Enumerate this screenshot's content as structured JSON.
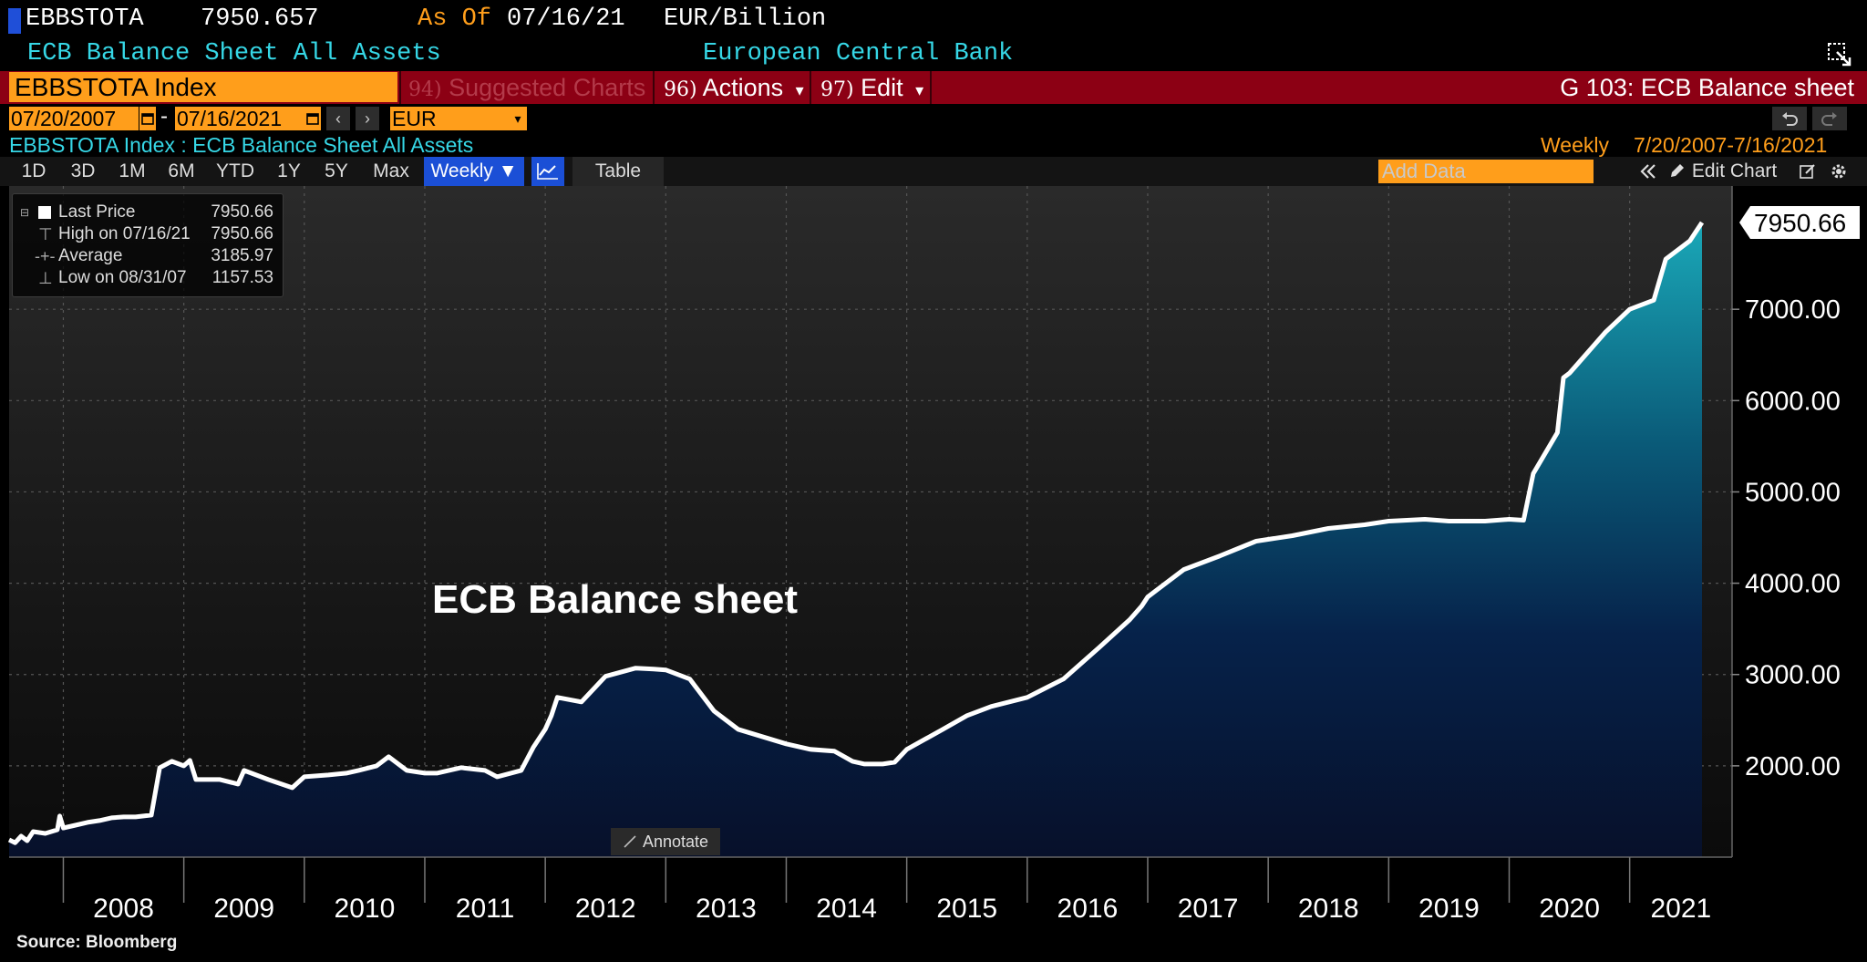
{
  "header": {
    "ticker": "EBBSTOTA",
    "last_value": "7950.657",
    "as_of_label": "As Of",
    "as_of_date": "07/16/21",
    "units": "EUR/Billion",
    "description": "ECB Balance Sheet All Assets",
    "source_name": "European Central Bank"
  },
  "toolbar": {
    "index_field": "EBBSTOTA Index",
    "suggested_num": "94)",
    "suggested_label": "Suggested Charts",
    "actions_num": "96)",
    "actions_label": "Actions",
    "edit_num": "97)",
    "edit_label": "Edit",
    "page_title": "G 103: ECB Balance sheet",
    "dropdown_arrow": "▾"
  },
  "range": {
    "start_date": "07/20/2007",
    "end_date": "07/16/2021",
    "separator": "-",
    "currency": "EUR"
  },
  "subheader": {
    "security": "EBBSTOTA Index : ECB Balance Sheet All Assets",
    "frequency": "Weekly",
    "period": "7/20/2007-7/16/2021"
  },
  "timeframes": [
    "1D",
    "3D",
    "1M",
    "6M",
    "YTD",
    "1Y",
    "5Y",
    "Max"
  ],
  "frequency_button": "Weekly ▼",
  "table_button": "Table",
  "add_data_placeholder": "Add Data",
  "edit_chart_label": "Edit Chart",
  "legend": [
    {
      "label": "Last Price",
      "value": "7950.66"
    },
    {
      "label": "High on 07/16/21",
      "value": "7950.66"
    },
    {
      "label": "Average",
      "value": "3185.97"
    },
    {
      "label": "Low on 08/31/07",
      "value": "1157.53"
    }
  ],
  "annotate_label": "Annotate",
  "source_text": "Source: Bloomberg",
  "colors": {
    "accent_orange": "#ff9e1b",
    "toolbar_red": "#8c0014",
    "cyan_text": "#36d7e6",
    "button_blue": "#1b4fd6"
  },
  "chart_data": {
    "type": "area",
    "title": "ECB Balance sheet",
    "last_label": "7950.66",
    "xlabel": "",
    "ylabel": "",
    "xlim": [
      2007.55,
      2021.85
    ],
    "ylim": [
      1000,
      8350
    ],
    "y_ticks": [
      2000,
      3000,
      4000,
      5000,
      6000,
      7000
    ],
    "y_tick_labels": [
      "2000.00",
      "3000.00",
      "4000.00",
      "5000.00",
      "6000.00",
      "7000.00"
    ],
    "x_tick_labels": [
      "2008",
      "2009",
      "2010",
      "2011",
      "2012",
      "2013",
      "2014",
      "2015",
      "2016",
      "2017",
      "2018",
      "2019",
      "2020",
      "2021"
    ],
    "grid": true,
    "series": [
      {
        "name": "Last Price",
        "x": [
          2007.55,
          2007.6,
          2007.65,
          2007.7,
          2007.75,
          2007.85,
          2007.95,
          2007.97,
          2008.0,
          2008.1,
          2008.2,
          2008.3,
          2008.4,
          2008.5,
          2008.6,
          2008.73,
          2008.8,
          2008.9,
          2009.0,
          2009.05,
          2009.1,
          2009.3,
          2009.45,
          2009.5,
          2009.7,
          2009.9,
          2010.0,
          2010.2,
          2010.35,
          2010.45,
          2010.6,
          2010.7,
          2010.85,
          2011.0,
          2011.1,
          2011.3,
          2011.5,
          2011.6,
          2011.8,
          2011.9,
          2012.0,
          2012.05,
          2012.1,
          2012.3,
          2012.5,
          2012.75,
          2012.9,
          2013.0,
          2013.2,
          2013.4,
          2013.6,
          2013.8,
          2014.0,
          2014.2,
          2014.4,
          2014.55,
          2014.65,
          2014.8,
          2014.9,
          2015.0,
          2015.3,
          2015.5,
          2015.7,
          2016.0,
          2016.3,
          2016.6,
          2016.85,
          2016.95,
          2017.0,
          2017.3,
          2017.6,
          2017.9,
          2018.2,
          2018.5,
          2018.8,
          2019.0,
          2019.3,
          2019.5,
          2019.8,
          2020.0,
          2020.12,
          2020.2,
          2020.4,
          2020.45,
          2020.5,
          2020.6,
          2020.8,
          2021.0,
          2021.2,
          2021.3,
          2021.5,
          2021.6
        ],
        "y": [
          1190,
          1157.53,
          1230,
          1180,
          1280,
          1260,
          1300,
          1450,
          1320,
          1350,
          1380,
          1400,
          1430,
          1440,
          1440,
          1460,
          1980,
          2050,
          2000,
          2060,
          1850,
          1850,
          1800,
          1950,
          1850,
          1760,
          1880,
          1900,
          1920,
          1950,
          2000,
          2100,
          1950,
          1920,
          1920,
          1980,
          1950,
          1880,
          1950,
          2200,
          2400,
          2550,
          2750,
          2700,
          2980,
          3070,
          3060,
          3050,
          2950,
          2600,
          2400,
          2320,
          2240,
          2180,
          2160,
          2050,
          2020,
          2020,
          2040,
          2180,
          2400,
          2550,
          2650,
          2750,
          2950,
          3300,
          3600,
          3750,
          3850,
          4150,
          4300,
          4460,
          4520,
          4600,
          4640,
          4680,
          4700,
          4680,
          4680,
          4700,
          4690,
          5200,
          5650,
          6250,
          6300,
          6450,
          6750,
          7000,
          7100,
          7550,
          7750,
          7950.66
        ]
      }
    ]
  }
}
